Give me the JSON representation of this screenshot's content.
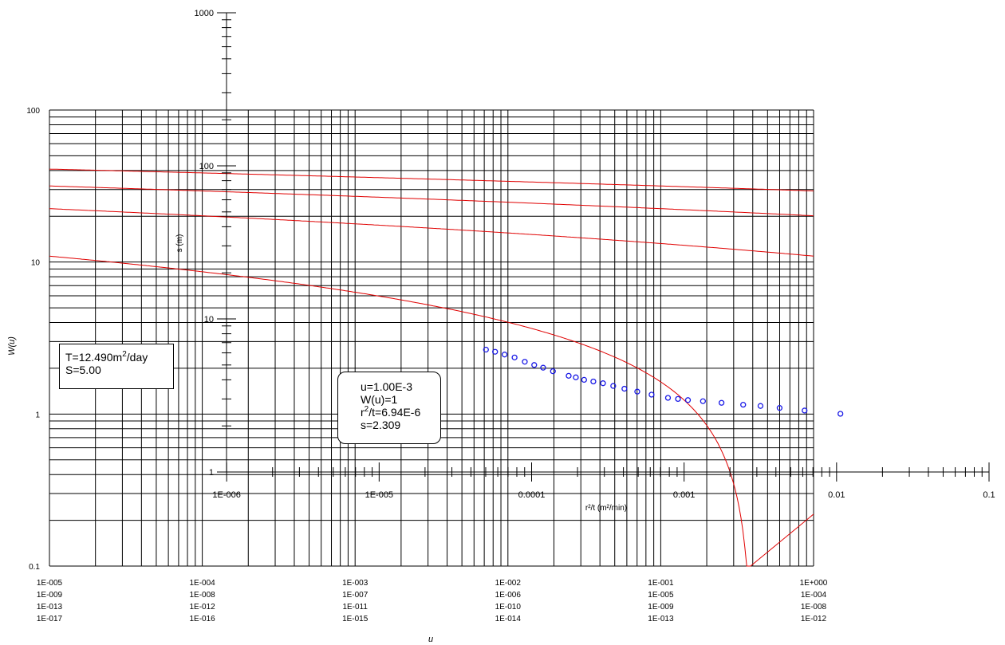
{
  "chart_data": {
    "type": "scatter",
    "title": "",
    "axes": {
      "wu": {
        "label": "W(u)",
        "scale": "log",
        "range": [
          0.1,
          1000
        ],
        "tick_labels": [
          "0.1",
          "1",
          "10",
          "100"
        ]
      },
      "u": {
        "label": "u",
        "scale": "log",
        "range": [
          1e-05,
          1
        ],
        "tick_labels_rows": [
          [
            "1E-005",
            "1E-004",
            "1E-003",
            "1E-002",
            "1E-001",
            "1E+000"
          ],
          [
            "1E-009",
            "1E-008",
            "1E-007",
            "1E-006",
            "1E-005",
            "1E-004"
          ],
          [
            "1E-013",
            "1E-012",
            "1E-011",
            "1E-010",
            "1E-009",
            "1E-008"
          ],
          [
            "1E-017",
            "1E-016",
            "1E-015",
            "1E-014",
            "1E-013",
            "1E-012"
          ]
        ]
      },
      "s": {
        "label": "s (m)",
        "scale": "log",
        "range": [
          1,
          1000
        ],
        "tick_labels": [
          "1",
          "10",
          "100",
          "1000"
        ]
      },
      "r2t": {
        "label": "r²/t (m²/min)",
        "scale": "log",
        "range": [
          1e-07,
          0.1
        ],
        "tick_labels": [
          "1E-006",
          "1E-005",
          "0.0001",
          "0.001",
          "0.01",
          "0.1"
        ]
      }
    },
    "grid": true,
    "type_curve_name": "W(u)",
    "observations": {
      "x_r2t": [
        5.02e-05,
        5.76e-05,
        6.65e-05,
        7.73e-05,
        9.02e-05,
        0.000104,
        0.000119,
        0.000138,
        0.000175,
        0.000195,
        0.000221,
        0.000254,
        0.000294,
        0.000343,
        0.000406,
        0.000493,
        0.000612,
        0.000784,
        0.000912,
        0.00106,
        0.00133,
        0.00176,
        0.00244,
        0.00317,
        0.00423,
        0.00617,
        0.0106
      ],
      "y_s": [
        6.3,
        6.1,
        5.85,
        5.6,
        5.25,
        5.0,
        4.8,
        4.55,
        4.25,
        4.15,
        4.0,
        3.9,
        3.8,
        3.65,
        3.5,
        3.35,
        3.2,
        3.05,
        3.0,
        2.95,
        2.9,
        2.83,
        2.75,
        2.7,
        2.62,
        2.52,
        2.4
      ]
    },
    "color": "#1a1ae6",
    "curve_color": "#e00000",
    "parameters_box": {
      "T_text": "T=12.490m",
      "T_sup": "2",
      "T_unit": "/day",
      "S_text": "S=5.00"
    },
    "match_point_box": {
      "u_text": "u=1.00E-3",
      "wu_text": "W(u)=1",
      "r2t_pre": "r",
      "r2t_sup": "2",
      "r2t_post": "/t=6.94E-6",
      "s_text": "s=2.309"
    }
  }
}
